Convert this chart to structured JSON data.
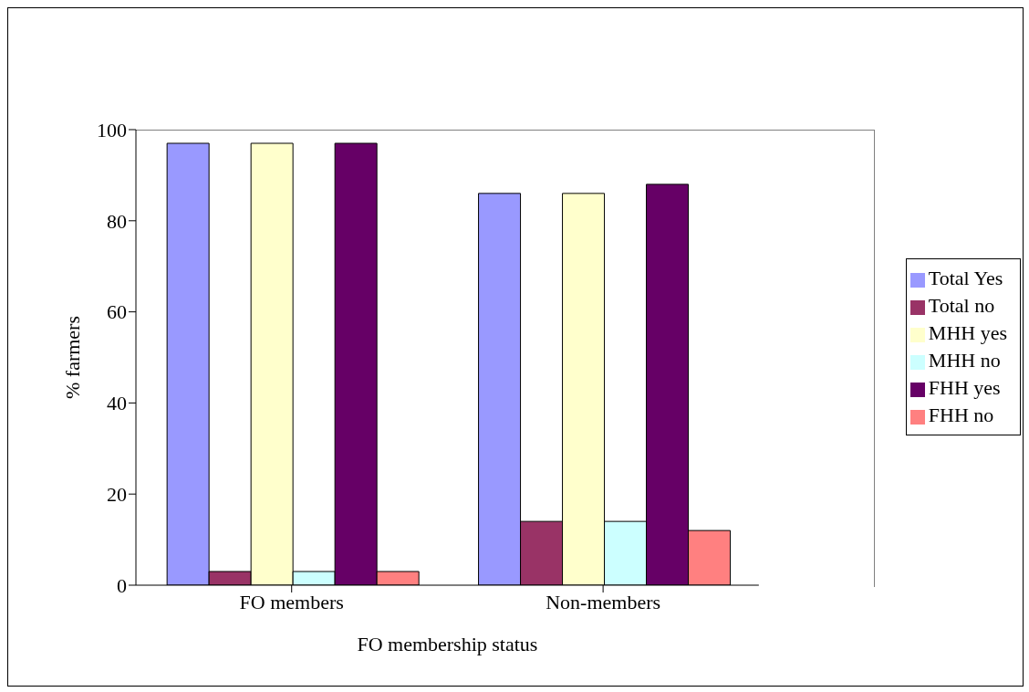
{
  "chart_data": {
    "type": "bar",
    "xlabel": "FO membership status",
    "ylabel": "% farmers",
    "categories": [
      "FO members",
      "Non-members"
    ],
    "series": [
      {
        "name": "Total Yes",
        "color": "#9999ff",
        "values": [
          97,
          86
        ]
      },
      {
        "name": "Total no",
        "color": "#993366",
        "values": [
          3,
          14
        ]
      },
      {
        "name": "MHH yes",
        "color": "#ffffcc",
        "values": [
          97,
          86
        ]
      },
      {
        "name": "MHH no",
        "color": "#ccffff",
        "values": [
          3,
          14
        ]
      },
      {
        "name": "FHH yes",
        "color": "#660066",
        "values": [
          97,
          88
        ]
      },
      {
        "name": "FHH no",
        "color": "#ff8080",
        "values": [
          3,
          12
        ]
      }
    ],
    "ylim": [
      0,
      100
    ],
    "yticks": [
      0,
      20,
      40,
      60,
      80,
      100
    ],
    "grid": false,
    "legend": "right"
  }
}
